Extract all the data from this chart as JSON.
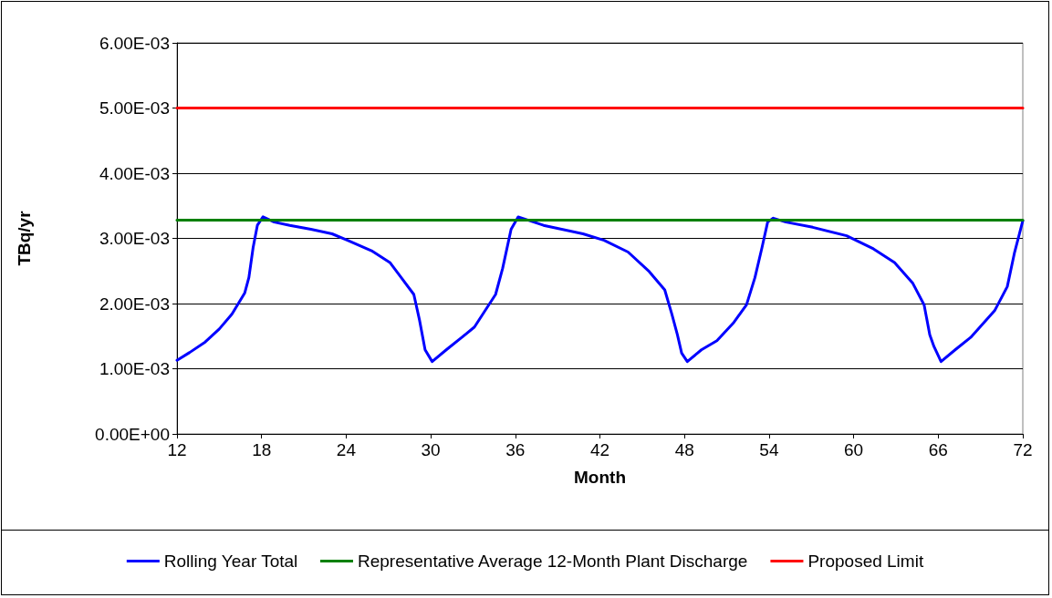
{
  "chart_data": {
    "type": "line",
    "xlabel": "Month",
    "ylabel": "TBq/yr",
    "xlim": [
      12,
      72
    ],
    "xticks": [
      12,
      18,
      24,
      30,
      36,
      42,
      48,
      54,
      60,
      66,
      72
    ],
    "ylim": [
      0,
      0.006
    ],
    "yticks": [
      {
        "value": 0,
        "label": "0.00E+00"
      },
      {
        "value": 0.001,
        "label": "1.00E-03"
      },
      {
        "value": 0.002,
        "label": "2.00E-03"
      },
      {
        "value": 0.003,
        "label": "3.00E-03"
      },
      {
        "value": 0.004,
        "label": "4.00E-03"
      },
      {
        "value": 0.005,
        "label": "5.00E-03"
      },
      {
        "value": 0.006,
        "label": "6.00E-03"
      }
    ],
    "grid": "y",
    "legend": "bottom",
    "marker": "none",
    "line_style": "solid",
    "series": [
      {
        "name": "Rolling Year Total",
        "color": "#0000ff",
        "x": [
          12,
          12.9,
          14,
          15,
          15.9,
          16.8,
          17.1,
          17.4,
          17.7,
          18.1,
          18.9,
          20,
          21.5,
          23,
          24.1,
          25.8,
          27.1,
          27.9,
          28.8,
          29.2,
          29.6,
          30.1,
          31.1,
          32.2,
          33.1,
          34.6,
          35.1,
          35.7,
          36.2,
          38,
          40.8,
          42.3,
          44,
          45.5,
          46.6,
          47.1,
          47.5,
          47.8,
          48.2,
          49.2,
          50.3,
          51.5,
          52.4,
          53,
          53.5,
          53.9,
          54.3,
          55.2,
          57.1,
          59.5,
          61.4,
          62.9,
          64.2,
          65,
          65.4,
          65.7,
          66.2,
          67.2,
          68.3,
          70,
          70.9,
          71.4,
          72
        ],
        "values": [
          0.00113,
          0.00125,
          0.00141,
          0.00161,
          0.00184,
          0.00216,
          0.0024,
          0.00286,
          0.0032,
          0.00333,
          0.00325,
          0.0032,
          0.00314,
          0.00307,
          0.00297,
          0.00281,
          0.00263,
          0.0024,
          0.00214,
          0.00175,
          0.00129,
          0.00111,
          0.00129,
          0.00148,
          0.00164,
          0.00214,
          0.00254,
          0.00314,
          0.00333,
          0.0032,
          0.00307,
          0.00297,
          0.00279,
          0.00249,
          0.00221,
          0.00184,
          0.00152,
          0.00124,
          0.00111,
          0.00129,
          0.00143,
          0.00171,
          0.00198,
          0.0024,
          0.00286,
          0.00325,
          0.00331,
          0.00325,
          0.00317,
          0.00304,
          0.00284,
          0.00263,
          0.00231,
          0.00198,
          0.00152,
          0.00134,
          0.00111,
          0.00129,
          0.00148,
          0.00189,
          0.00226,
          0.00277,
          0.00327
        ]
      },
      {
        "name": "Representative Average 12-Month Plant Discharge",
        "color": "#008000",
        "x": [
          12,
          72
        ],
        "values": [
          0.00328,
          0.00328
        ]
      },
      {
        "name": "Proposed Limit",
        "color": "#ff0000",
        "x": [
          12,
          72
        ],
        "values": [
          0.005,
          0.005
        ]
      }
    ]
  }
}
